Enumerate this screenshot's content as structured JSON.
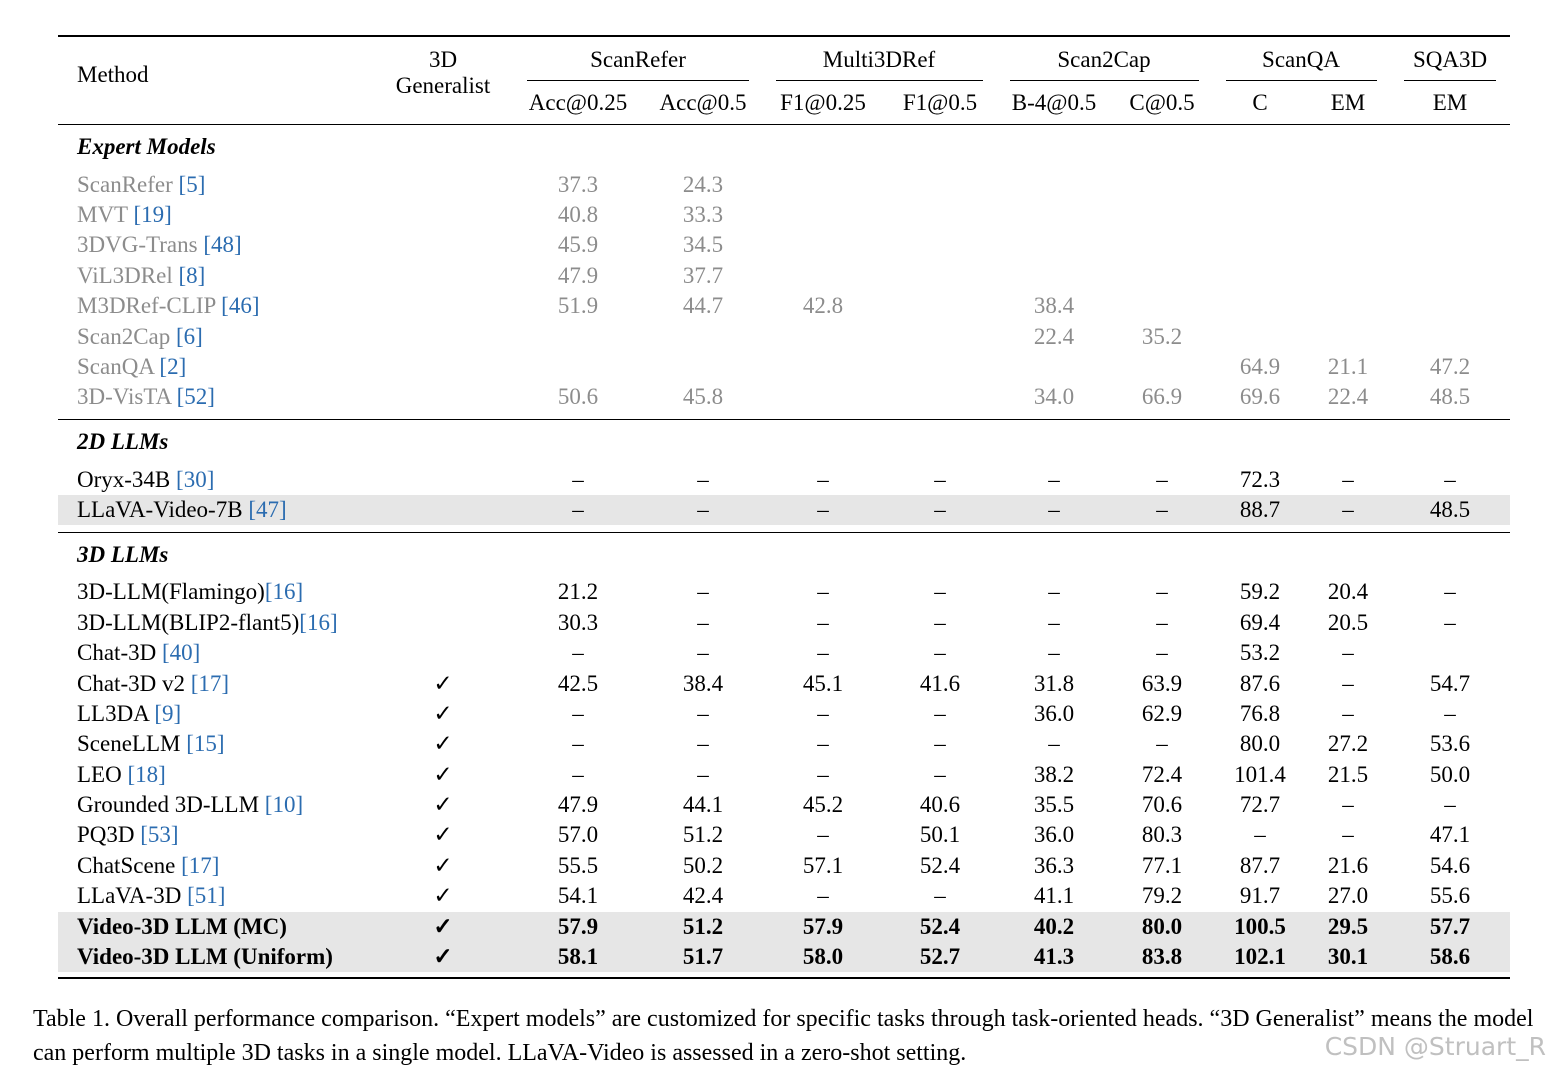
{
  "header": {
    "method": "Method",
    "generalist_line1": "3D",
    "generalist_line2": "Generalist",
    "groups": [
      "ScanRefer",
      "Multi3DRef",
      "Scan2Cap",
      "ScanQA",
      "SQA3D"
    ],
    "metrics": [
      "Acc@0.25",
      "Acc@0.5",
      "F1@0.25",
      "F1@0.5",
      "B-4@0.5",
      "C@0.5",
      "C",
      "EM",
      "EM"
    ]
  },
  "sections": [
    {
      "title": "Expert Models",
      "rows": [
        {
          "name": "ScanRefer ",
          "ref": "[5]",
          "gen": "",
          "vals": [
            "37.3",
            "24.3",
            "",
            "",
            "",
            "",
            "",
            "",
            ""
          ]
        },
        {
          "name": "MVT ",
          "ref": "[19]",
          "gen": "",
          "vals": [
            "40.8",
            "33.3",
            "",
            "",
            "",
            "",
            "",
            "",
            ""
          ]
        },
        {
          "name": "3DVG-Trans ",
          "ref": "[48]",
          "gen": "",
          "vals": [
            "45.9",
            "34.5",
            "",
            "",
            "",
            "",
            "",
            "",
            ""
          ]
        },
        {
          "name": "ViL3DRel ",
          "ref": "[8]",
          "gen": "",
          "vals": [
            "47.9",
            "37.7",
            "",
            "",
            "",
            "",
            "",
            "",
            ""
          ]
        },
        {
          "name": "M3DRef-CLIP ",
          "ref": "[46]",
          "gen": "",
          "vals": [
            "51.9",
            "44.7",
            "42.8",
            "",
            "38.4",
            "",
            "",
            "",
            ""
          ]
        },
        {
          "name": "Scan2Cap ",
          "ref": "[6]",
          "gen": "",
          "vals": [
            "",
            "",
            "",
            "",
            "22.4",
            "35.2",
            "",
            "",
            ""
          ]
        },
        {
          "name": "ScanQA ",
          "ref": "[2]",
          "gen": "",
          "vals": [
            "",
            "",
            "",
            "",
            "",
            "",
            "64.9",
            "21.1",
            "47.2"
          ]
        },
        {
          "name": "3D-VisTA ",
          "ref": "[52]",
          "gen": "",
          "vals": [
            "50.6",
            "45.8",
            "",
            "",
            "34.0",
            "66.9",
            "69.6",
            "22.4",
            "48.5"
          ]
        }
      ]
    },
    {
      "title": "2D LLMs",
      "rows": [
        {
          "name": "Oryx-34B ",
          "ref": "[30]",
          "gen": "",
          "vals": [
            "–",
            "–",
            "–",
            "–",
            "–",
            "–",
            "72.3",
            "–",
            "–"
          ]
        },
        {
          "name": "LLaVA-Video-7B ",
          "ref": "[47]",
          "gen": "",
          "vals": [
            "–",
            "–",
            "–",
            "–",
            "–",
            "–",
            "88.7",
            "–",
            "48.5"
          ]
        }
      ]
    },
    {
      "title": "3D LLMs",
      "rows": [
        {
          "name": "3D-LLM(Flamingo)",
          "ref": "[16]",
          "gen": "",
          "vals": [
            "21.2",
            "–",
            "–",
            "–",
            "–",
            "–",
            "59.2",
            "20.4",
            "–"
          ]
        },
        {
          "name": "3D-LLM(BLIP2-flant5)",
          "ref": "[16]",
          "gen": "",
          "vals": [
            "30.3",
            "–",
            "–",
            "–",
            "–",
            "–",
            "69.4",
            "20.5",
            "–"
          ]
        },
        {
          "name": "Chat-3D ",
          "ref": "[40]",
          "gen": "",
          "vals": [
            "–",
            "–",
            "–",
            "–",
            "–",
            "–",
            "53.2",
            "–",
            ""
          ]
        },
        {
          "name": "Chat-3D v2  ",
          "ref": "[17]",
          "gen": "✓",
          "vals": [
            "42.5",
            "38.4",
            "45.1",
            "41.6",
            "31.8",
            "63.9",
            "87.6",
            "–",
            "54.7"
          ]
        },
        {
          "name": "LL3DA ",
          "ref": "[9]",
          "gen": "✓",
          "vals": [
            "–",
            "–",
            "–",
            "–",
            "36.0",
            "62.9",
            "76.8",
            "–",
            "–"
          ]
        },
        {
          "name": "SceneLLM ",
          "ref": "[15]",
          "gen": "✓",
          "vals": [
            "–",
            "–",
            "–",
            "–",
            "–",
            "–",
            "80.0",
            "27.2",
            "53.6"
          ]
        },
        {
          "name": "LEO ",
          "ref": "[18]",
          "gen": "✓",
          "vals": [
            "–",
            "–",
            "–",
            "–",
            "38.2",
            "72.4",
            "101.4",
            "21.5",
            "50.0"
          ]
        },
        {
          "name": "Grounded 3D-LLM ",
          "ref": "[10]",
          "gen": "✓",
          "vals": [
            "47.9",
            "44.1",
            "45.2",
            "40.6",
            "35.5",
            "70.6",
            "72.7",
            "–",
            "–"
          ]
        },
        {
          "name": "PQ3D ",
          "ref": "[53]",
          "gen": "✓",
          "vals": [
            "57.0",
            "51.2",
            "–",
            "50.1",
            "36.0",
            "80.3",
            "–",
            "–",
            "47.1"
          ]
        },
        {
          "name": "ChatScene ",
          "ref": "[17]",
          "gen": "✓",
          "vals": [
            "55.5",
            "50.2",
            "57.1",
            "52.4",
            "36.3",
            "77.1",
            "87.7",
            "21.6",
            "54.6"
          ]
        },
        {
          "name": "LLaVA-3D ",
          "ref": "[51]",
          "gen": "✓",
          "vals": [
            "54.1",
            "42.4",
            "–",
            "–",
            "41.1",
            "79.2",
            "91.7",
            "27.0",
            "55.6"
          ]
        },
        {
          "name": "Video-3D LLM (MC)",
          "ref": "",
          "gen": "✓",
          "vals": [
            "57.9",
            "51.2",
            "57.9",
            "52.4",
            "40.2",
            "80.0",
            "100.5",
            "29.5",
            "57.7"
          ]
        },
        {
          "name": "Video-3D LLM (Uniform)",
          "ref": "",
          "gen": "✓",
          "vals": [
            "58.1",
            "51.7",
            "58.0",
            "52.7",
            "41.3",
            "83.8",
            "102.1",
            "30.1",
            "58.6"
          ]
        }
      ]
    }
  ],
  "caption": "Table 1. Overall performance comparison. “Expert models” are customized for specific tasks through task-oriented heads. “3D Generalist” means the model can perform multiple 3D tasks in a single model. LLaVA-Video is assessed in a zero-shot setting.",
  "watermark": "CSDN @Struart_R"
}
